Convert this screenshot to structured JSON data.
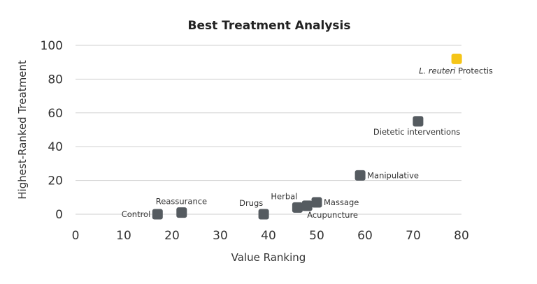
{
  "chart_data": {
    "type": "scatter",
    "title": "Best Treatment Analysis",
    "xlabel": "Value Ranking",
    "ylabel": "Highest-Ranked Treatment",
    "xlim": [
      0,
      80
    ],
    "ylim": [
      0,
      100
    ],
    "xticks": [
      0,
      10,
      20,
      30,
      40,
      50,
      60,
      70,
      80
    ],
    "yticks": [
      0,
      20,
      40,
      60,
      80,
      100
    ],
    "grid": "horizontal",
    "colors": {
      "default": "#555b60",
      "highlight": "#f5c518"
    },
    "points": [
      {
        "label": "Control",
        "x": 17,
        "y": 0
      },
      {
        "label": "Reassurance",
        "x": 22,
        "y": 1
      },
      {
        "label": "Drugs",
        "x": 39,
        "y": 0
      },
      {
        "label": "Herbal",
        "x": 46,
        "y": 4
      },
      {
        "label": "Acupuncture",
        "x": 48,
        "y": 5
      },
      {
        "label": "Massage",
        "x": 50,
        "y": 7
      },
      {
        "label": "Manipulative",
        "x": 59,
        "y": 23
      },
      {
        "label": "Dietetic interventions",
        "x": 71,
        "y": 55
      },
      {
        "label_italic": "L. reuteri",
        "label": "Protectis",
        "x": 79,
        "y": 92,
        "highlight": true
      }
    ]
  }
}
